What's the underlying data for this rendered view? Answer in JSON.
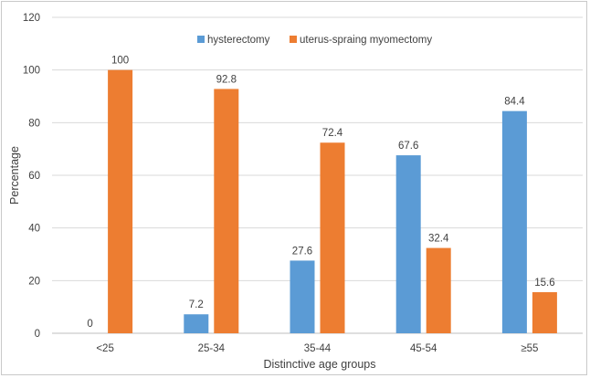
{
  "chart_data": {
    "type": "bar",
    "title": "",
    "xlabel": "Distinctive age groups",
    "ylabel": "Percentage",
    "ylim": [
      0,
      120
    ],
    "yticks": [
      0,
      20,
      40,
      60,
      80,
      100,
      120
    ],
    "categories": [
      "<25",
      "25-34",
      "35-44",
      "45-54",
      "≥55"
    ],
    "series": [
      {
        "name": "hysterectomy",
        "color": "#5b9bd5",
        "values": [
          0,
          7.2,
          27.6,
          67.6,
          84.4
        ],
        "labels": [
          "0",
          "7.2",
          "27.6",
          "67.6",
          "84.4"
        ]
      },
      {
        "name": "uterus-spraing myomectomy",
        "color": "#ed7d31",
        "values": [
          100,
          92.8,
          72.4,
          32.4,
          15.6
        ],
        "labels": [
          "100",
          "92.8",
          "72.4",
          "32.4",
          "15.6"
        ]
      }
    ],
    "grid": true,
    "legend_position": "top"
  }
}
